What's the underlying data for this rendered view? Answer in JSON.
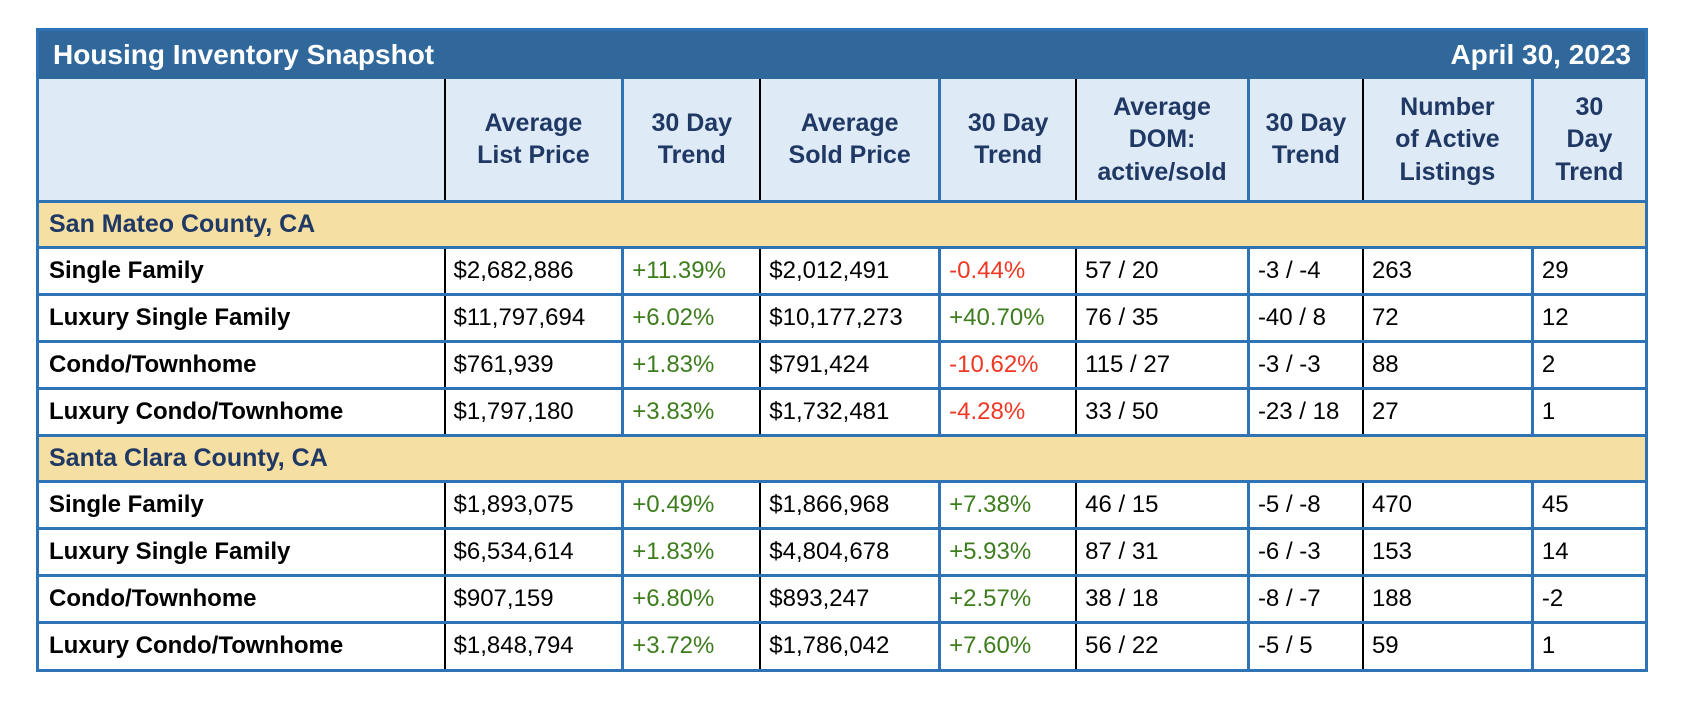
{
  "title_bar": {
    "title": "Housing Inventory Snapshot",
    "date": "April 30, 2023"
  },
  "colors": {
    "title_bar_bg": "#31689B",
    "title_text": "#FFFFFF",
    "header_bg": "#DEEAF6",
    "navy_text": "#1F3864",
    "section_bg": "#F6DFA2",
    "border_blue": "#2E74B5",
    "border_black": "#000000",
    "positive_green": "#3E7D1E",
    "negative_red": "#EF3824",
    "page_bg": "#FFFFFF"
  },
  "columns": [
    {
      "id": "row-label",
      "header_lines": [],
      "width_pct": 25.25,
      "border_left": "none",
      "type": "label"
    },
    {
      "id": "avg-list-price",
      "header_lines": [
        "Average",
        "List Price"
      ],
      "width_pct": 11.1,
      "border_left": "black",
      "type": "text"
    },
    {
      "id": "list-price-trend",
      "header_lines": [
        "30 Day",
        "Trend"
      ],
      "width_pct": 8.56,
      "border_left": "blue",
      "type": "pct"
    },
    {
      "id": "avg-sold-price",
      "header_lines": [
        "Average",
        "Sold Price"
      ],
      "width_pct": 11.17,
      "border_left": "black",
      "type": "text"
    },
    {
      "id": "sold-price-trend",
      "header_lines": [
        "30 Day",
        "Trend"
      ],
      "width_pct": 8.5,
      "border_left": "blue",
      "type": "pct"
    },
    {
      "id": "avg-dom",
      "header_lines": [
        "Average",
        "DOM:",
        "active/sold"
      ],
      "width_pct": 10.73,
      "border_left": "black",
      "type": "text"
    },
    {
      "id": "dom-trend",
      "header_lines": [
        "30 Day",
        "Trend"
      ],
      "width_pct": 7.13,
      "border_left": "blue",
      "type": "text"
    },
    {
      "id": "active-listings",
      "header_lines": [
        "Number",
        "of Active",
        "Listings"
      ],
      "width_pct": 10.55,
      "border_left": "black",
      "type": "text"
    },
    {
      "id": "listings-trend",
      "header_lines": [
        "30",
        "Day",
        "Trend"
      ],
      "width_pct": 7.01,
      "border_left": "blue",
      "type": "text"
    }
  ],
  "chart_data": {
    "type": "table",
    "title": "Housing Inventory Snapshot",
    "date": "April 30, 2023",
    "column_headers": [
      "",
      "Average List Price",
      "30 Day Trend",
      "Average Sold Price",
      "30 Day Trend",
      "Average DOM: active/sold",
      "30 Day Trend",
      "Number of Active Listings",
      "30 Day Trend"
    ],
    "sections": [
      {
        "name": "San Mateo County, CA",
        "rows": [
          {
            "label": "Single Family",
            "values": [
              "$2,682,886",
              "+11.39%",
              "$2,012,491",
              "-0.44%",
              "57 / 20",
              "-3 / -4",
              "263",
              "29"
            ]
          },
          {
            "label": "Luxury Single Family",
            "values": [
              "$11,797,694",
              "+6.02%",
              "$10,177,273",
              "+40.70%",
              "76 / 35",
              "-40 / 8",
              "72",
              "12"
            ]
          },
          {
            "label": "Condo/Townhome",
            "values": [
              "$761,939",
              "+1.83%",
              "$791,424",
              "-10.62%",
              "115 / 27",
              "-3 / -3",
              "88",
              "2"
            ]
          },
          {
            "label": "Luxury Condo/Townhome",
            "values": [
              "$1,797,180",
              "+3.83%",
              "$1,732,481",
              "-4.28%",
              "33 / 50",
              "-23 / 18",
              "27",
              "1"
            ]
          }
        ]
      },
      {
        "name": "Santa Clara County, CA",
        "rows": [
          {
            "label": "Single Family",
            "values": [
              "$1,893,075",
              "+0.49%",
              "$1,866,968",
              "+7.38%",
              "46 / 15",
              "-5 / -8",
              "470",
              "45"
            ]
          },
          {
            "label": "Luxury Single Family",
            "values": [
              "$6,534,614",
              "+1.83%",
              "$4,804,678",
              "+5.93%",
              "87 / 31",
              "-6 / -3",
              "153",
              "14"
            ]
          },
          {
            "label": "Condo/Townhome",
            "values": [
              "$907,159",
              "+6.80%",
              "$893,247",
              "+2.57%",
              "38 / 18",
              "-8 / -7",
              "188",
              "-2"
            ]
          },
          {
            "label": "Luxury Condo/Townhome",
            "values": [
              "$1,848,794",
              "+3.72%",
              "$1,786,042",
              "+7.60%",
              "56 / 22",
              "-5 / 5",
              "59",
              "1"
            ]
          }
        ]
      }
    ]
  }
}
